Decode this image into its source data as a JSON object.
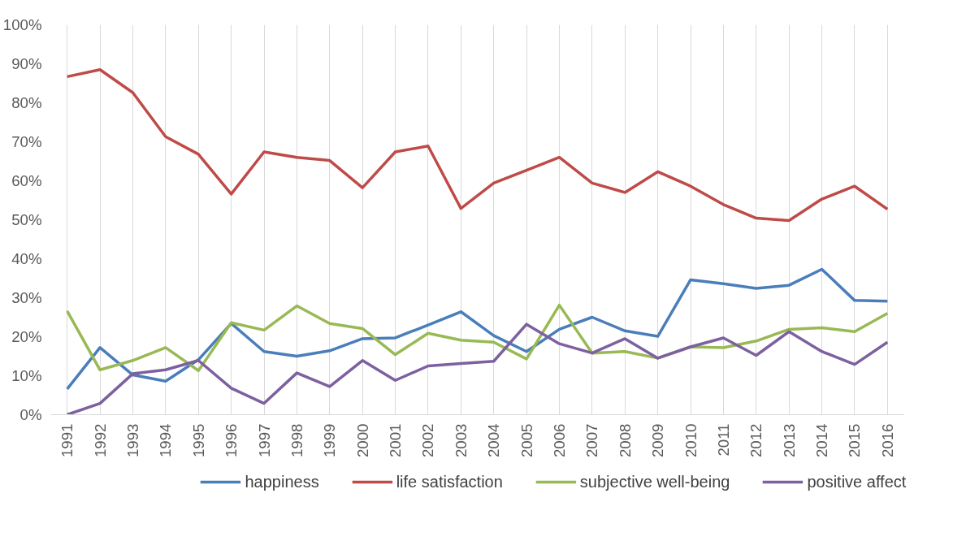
{
  "chart_data": {
    "type": "line",
    "categories": [
      "1991",
      "1992",
      "1993",
      "1994",
      "1995",
      "1996",
      "1997",
      "1998",
      "1999",
      "2000",
      "2001",
      "2002",
      "2003",
      "2004",
      "2005",
      "2006",
      "2007",
      "2008",
      "2009",
      "2010",
      "2011",
      "2012",
      "2013",
      "2014",
      "2015",
      "2016"
    ],
    "series": [
      {
        "name": "happiness",
        "color": "#4a7ebb",
        "values": [
          6.6,
          17.2,
          10.2,
          8.6,
          14.1,
          23.4,
          16.2,
          15.0,
          16.4,
          19.5,
          19.7,
          23.0,
          26.4,
          20.3,
          16.2,
          21.9,
          25.0,
          21.5,
          20.1,
          34.6,
          33.6,
          32.4,
          33.2,
          37.3,
          29.3,
          29.1
        ]
      },
      {
        "name": "life satisfaction",
        "color": "#be4b48",
        "values": [
          86.7,
          88.5,
          82.6,
          71.3,
          66.8,
          56.6,
          67.4,
          66.0,
          65.2,
          58.2,
          67.4,
          68.9,
          52.9,
          59.4,
          62.7,
          66.0,
          59.4,
          57.0,
          62.3,
          58.6,
          53.9,
          50.4,
          49.8,
          55.3,
          58.6,
          52.7
        ]
      },
      {
        "name": "subjective well-being",
        "color": "#98b954",
        "values": [
          26.6,
          11.5,
          13.9,
          17.2,
          11.3,
          23.6,
          21.7,
          27.9,
          23.4,
          22.1,
          15.4,
          20.9,
          19.1,
          18.6,
          14.3,
          28.1,
          15.8,
          16.2,
          14.5,
          17.4,
          17.2,
          18.9,
          21.9,
          22.3,
          21.3,
          26.0
        ]
      },
      {
        "name": "positive affect",
        "color": "#7d60a0",
        "values": [
          0,
          2.9,
          10.5,
          11.5,
          13.9,
          6.8,
          2.9,
          10.7,
          7.2,
          13.9,
          8.8,
          12.5,
          13.1,
          13.7,
          23.2,
          18.2,
          15.8,
          19.5,
          14.5,
          17.4,
          19.7,
          15.2,
          21.3,
          16.2,
          12.9,
          18.6
        ]
      }
    ],
    "ylim": [
      0,
      100
    ],
    "yticks": [
      {
        "value": 0,
        "label": "0%"
      },
      {
        "value": 10,
        "label": "10%"
      },
      {
        "value": 20,
        "label": "20%"
      },
      {
        "value": 30,
        "label": "30%"
      },
      {
        "value": 40,
        "label": "40%"
      },
      {
        "value": 50,
        "label": "50%"
      },
      {
        "value": 60,
        "label": "60%"
      },
      {
        "value": 70,
        "label": "70%"
      },
      {
        "value": 80,
        "label": "80%"
      },
      {
        "value": 90,
        "label": "90%"
      },
      {
        "value": 100,
        "label": "100%"
      }
    ],
    "grid": "x",
    "legend": "bottom",
    "marker": "none",
    "line_style": "solid"
  }
}
